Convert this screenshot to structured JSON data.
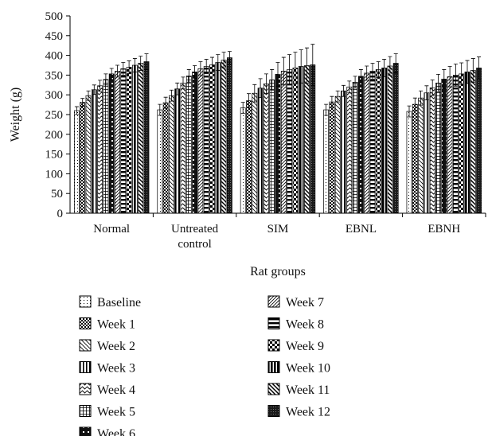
{
  "chart_data": {
    "type": "bar",
    "xlabel": "Rat groups",
    "ylabel": "Weight (g)",
    "ylim": [
      0,
      500
    ],
    "yticks": [
      0,
      50,
      100,
      150,
      200,
      250,
      300,
      350,
      400,
      450,
      500
    ],
    "grid": false,
    "legend_position": "bottom",
    "error_bars": true,
    "categories": [
      "Normal",
      "Untreated control",
      "SIM",
      "EBNL",
      "EBNH"
    ],
    "category_lines": [
      [
        "Normal"
      ],
      [
        "Untreated",
        "control"
      ],
      [
        "SIM"
      ],
      [
        "EBNL"
      ],
      [
        "EBNH"
      ]
    ],
    "series": [
      {
        "name": "Baseline",
        "pattern": "dots",
        "values": [
          260,
          262,
          267,
          262,
          258
        ],
        "errors": [
          10,
          14,
          14,
          14,
          14
        ]
      },
      {
        "name": "Week 1",
        "pattern": "checker",
        "values": [
          281,
          280,
          285,
          282,
          276
        ],
        "errors": [
          10,
          14,
          18,
          14,
          16
        ]
      },
      {
        "name": "Week 2",
        "pattern": "diag-back",
        "values": [
          298,
          298,
          304,
          296,
          292
        ],
        "errors": [
          12,
          14,
          22,
          14,
          18
        ]
      },
      {
        "name": "Week 3",
        "pattern": "vstripes",
        "values": [
          313,
          315,
          317,
          310,
          305
        ],
        "errors": [
          12,
          15,
          24,
          14,
          18
        ]
      },
      {
        "name": "Week 4",
        "pattern": "waves",
        "values": [
          323,
          330,
          328,
          320,
          318
        ],
        "errors": [
          14,
          15,
          25,
          15,
          20
        ]
      },
      {
        "name": "Week 5",
        "pattern": "grid",
        "values": [
          339,
          348,
          338,
          332,
          330
        ],
        "errors": [
          14,
          16,
          26,
          15,
          22
        ]
      },
      {
        "name": "Week 6",
        "pattern": "dots-dark",
        "values": [
          353,
          358,
          352,
          347,
          340
        ],
        "errors": [
          14,
          16,
          30,
          17,
          24
        ]
      },
      {
        "name": "Week 7",
        "pattern": "diag-fwd",
        "values": [
          360,
          366,
          360,
          355,
          346
        ],
        "errors": [
          15,
          18,
          35,
          18,
          26
        ]
      },
      {
        "name": "Week 8",
        "pattern": "hstripes",
        "values": [
          366,
          372,
          364,
          360,
          350
        ],
        "errors": [
          16,
          18,
          38,
          20,
          28
        ]
      },
      {
        "name": "Week 9",
        "pattern": "checker-big",
        "values": [
          370,
          376,
          368,
          364,
          353
        ],
        "errors": [
          16,
          19,
          40,
          20,
          28
        ]
      },
      {
        "name": "Week 10",
        "pattern": "vstripes-bold",
        "values": [
          375,
          382,
          372,
          368,
          358
        ],
        "errors": [
          17,
          20,
          42,
          22,
          29
        ]
      },
      {
        "name": "Week 11",
        "pattern": "diag-back-bold",
        "values": [
          380,
          388,
          374,
          373,
          362
        ],
        "errors": [
          18,
          20,
          45,
          24,
          30
        ]
      },
      {
        "name": "Week 12",
        "pattern": "dark",
        "values": [
          384,
          394,
          376,
          380,
          368
        ],
        "errors": [
          20,
          16,
          52,
          24,
          28
        ]
      }
    ]
  }
}
